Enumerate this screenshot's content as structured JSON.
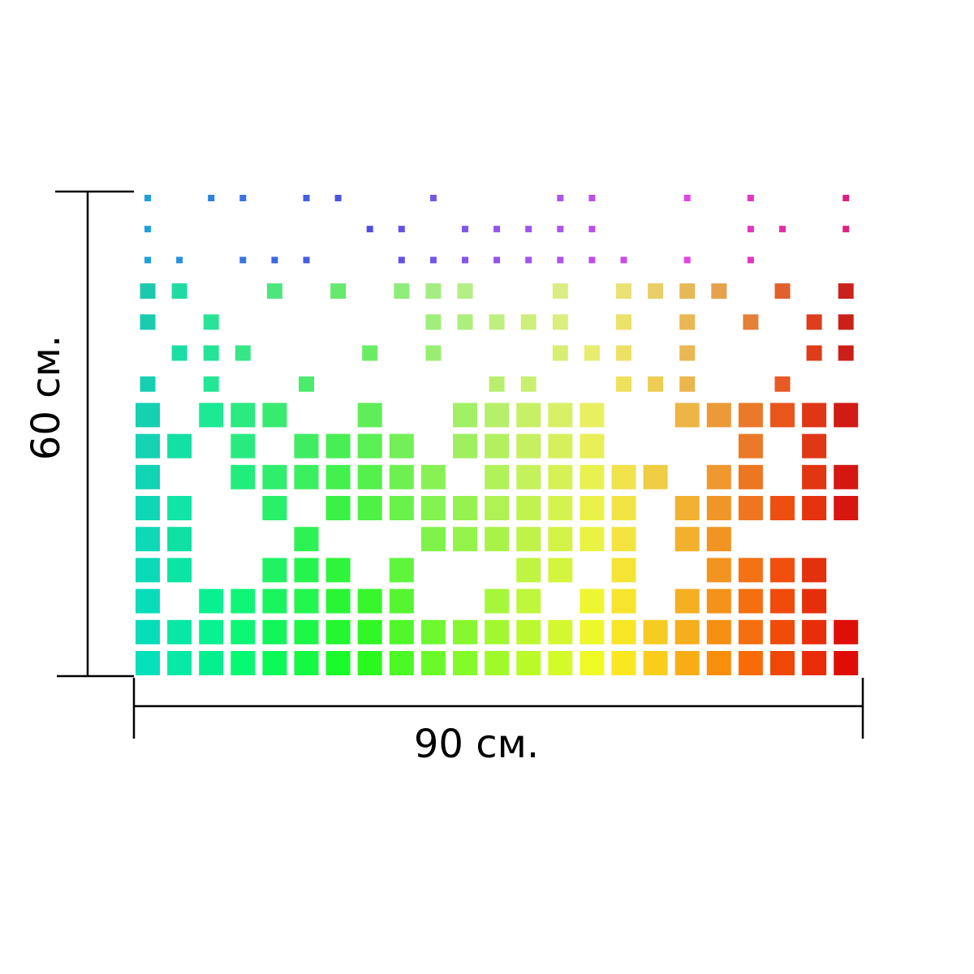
{
  "width_label": "90 см.",
  "height_label": "60 см."
}
